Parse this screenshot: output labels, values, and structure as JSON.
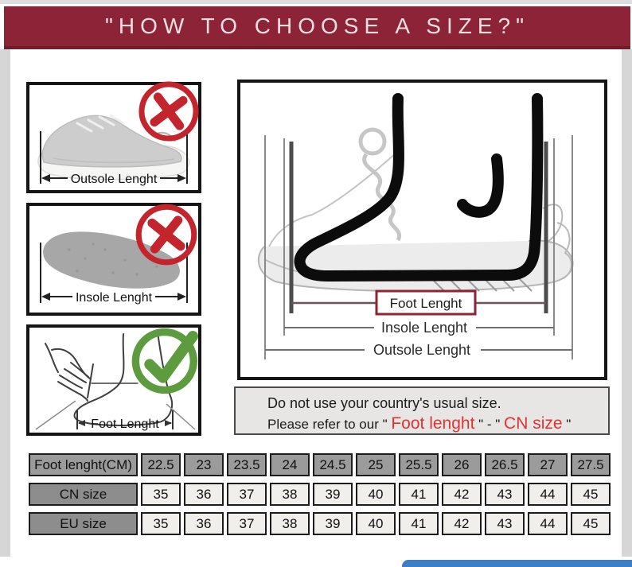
{
  "banner": {
    "title": "\"HOW TO CHOOSE A SIZE?\""
  },
  "panels": {
    "outsole": {
      "label": "Outsole Lenght",
      "mark": "cross"
    },
    "insole": {
      "label": "Insole Lenght",
      "mark": "cross"
    },
    "foot": {
      "label": "Foot Lenght",
      "mark": "check"
    }
  },
  "diagram": {
    "foot_label": "Foot Lenght",
    "insole_label": "Insole Lenght",
    "outsole_label": "Outsole Lenght"
  },
  "note": {
    "line1": "Do not use your country's usual size.",
    "line2": {
      "black1": "Please refer to our \" ",
      "red1": "Foot lenght",
      "black2": " \" - \" ",
      "red2": "CN size",
      "black3": " \""
    }
  },
  "size_table": {
    "rows": [
      {
        "header": "Foot lenght(CM)",
        "variant": "dark",
        "cells": [
          "22.5",
          "23",
          "23.5",
          "24",
          "24.5",
          "25",
          "25.5",
          "26",
          "26.5",
          "27",
          "27.5"
        ]
      },
      {
        "header": "CN size",
        "variant": "light",
        "cells": [
          "35",
          "36",
          "37",
          "38",
          "39",
          "40",
          "41",
          "42",
          "43",
          "44",
          "45"
        ]
      },
      {
        "header": "EU size",
        "variant": "light",
        "cells": [
          "35",
          "36",
          "37",
          "38",
          "39",
          "40",
          "41",
          "42",
          "43",
          "44",
          "45"
        ]
      }
    ]
  },
  "colors": {
    "banner_bg": "#8d2336",
    "cross_red": "#c4242b",
    "check_green": "#5d9c3e",
    "note_red_text": "#e23333",
    "foot_label_border": "#8e2433",
    "bottom_bar_blue": "#3d7ec4"
  }
}
